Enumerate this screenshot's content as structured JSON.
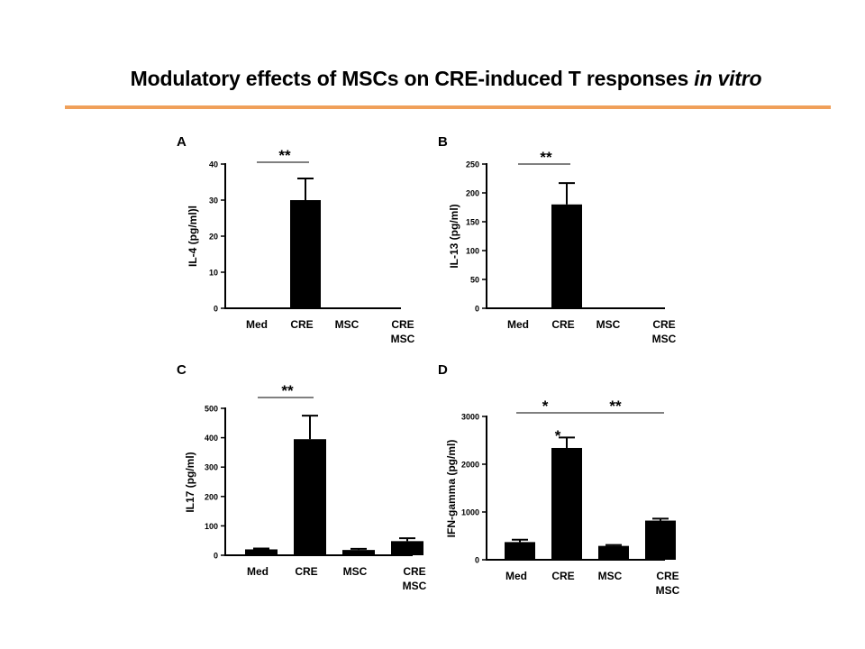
{
  "slide": {
    "title_main": "Modulatory effects of MSCs on CRE-induced T responses ",
    "title_italic": "in vitro",
    "accent_color": "#f0a05a"
  },
  "chart_data": [
    {
      "panel": "A",
      "type": "bar",
      "categories": [
        [
          "Med"
        ],
        [
          "CRE"
        ],
        [
          "MSC"
        ],
        [
          "CRE",
          "MSC"
        ]
      ],
      "values": [
        0,
        30,
        0,
        0
      ],
      "errors": [
        0,
        6,
        0,
        0
      ],
      "ylabel": "IL-4 (pg/ml)l",
      "ylim": [
        0,
        40
      ],
      "yticks": [
        0,
        10,
        20,
        30,
        40
      ],
      "significance": [
        {
          "label": "**",
          "from": 0,
          "to": 1
        }
      ]
    },
    {
      "panel": "B",
      "type": "bar",
      "categories": [
        [
          "Med"
        ],
        [
          "CRE"
        ],
        [
          "MSC"
        ],
        [
          "CRE",
          "MSC"
        ]
      ],
      "values": [
        0,
        180,
        0,
        0
      ],
      "errors": [
        0,
        37,
        0,
        0
      ],
      "ylabel": "IL-13 (pg/ml)",
      "ylim": [
        0,
        250
      ],
      "yticks": [
        0,
        50,
        100,
        150,
        200,
        250
      ],
      "significance": [
        {
          "label": "**",
          "from": 0,
          "to": 1
        }
      ]
    },
    {
      "panel": "C",
      "type": "bar",
      "categories": [
        [
          "Med"
        ],
        [
          "CRE"
        ],
        [
          "MSC"
        ],
        [
          "CRE",
          "MSC"
        ]
      ],
      "values": [
        20,
        395,
        18,
        48
      ],
      "errors": [
        3,
        80,
        4,
        10
      ],
      "ylabel": "IL17 (pg/ml)",
      "ylim": [
        0,
        500
      ],
      "yticks": [
        0,
        100,
        200,
        300,
        400,
        500
      ],
      "significance": [
        {
          "label": "**",
          "from": 0,
          "to": 1
        }
      ]
    },
    {
      "panel": "D",
      "type": "bar",
      "categories": [
        [
          "Med"
        ],
        [
          "CRE"
        ],
        [
          "MSC"
        ],
        [
          "CRE",
          "MSC"
        ]
      ],
      "values": [
        370,
        2340,
        290,
        820
      ],
      "errors": [
        50,
        220,
        20,
        40
      ],
      "ylabel": "IFN-gamma (pg/ml)",
      "ylim": [
        0,
        3000
      ],
      "yticks": [
        0,
        1000,
        2000,
        3000
      ],
      "significance": [
        {
          "label": "*",
          "from": 0,
          "to": 1
        },
        {
          "label": "**",
          "from": 1,
          "to": 3
        },
        {
          "label": "*",
          "from": 1,
          "to": 1
        }
      ]
    }
  ]
}
